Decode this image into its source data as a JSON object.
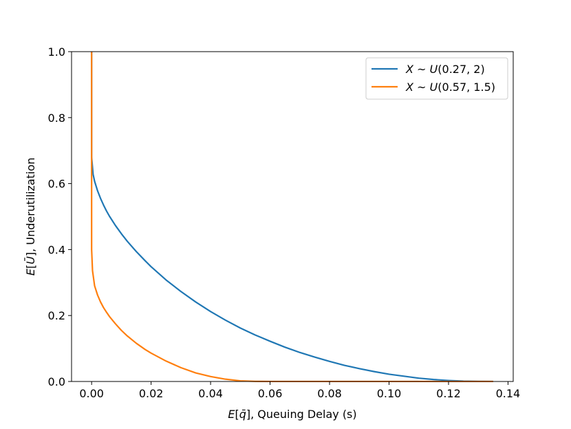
{
  "chart_data": {
    "type": "line",
    "title": "",
    "xlabel": {
      "prefix": "",
      "italic_var": "E",
      "open": "[",
      "var": "q̄",
      "close": "]",
      "suffix": ", Queuing Delay (s)"
    },
    "ylabel": {
      "prefix": "",
      "italic_var": "E",
      "open": "[",
      "var": "Ū",
      "close": "]",
      "suffix": ", Underutilization"
    },
    "xlim": [
      -0.00675,
      0.14175
    ],
    "ylim": [
      0,
      1.0
    ],
    "x_ticks": [
      0.0,
      0.02,
      0.04,
      0.06,
      0.08,
      0.1,
      0.12,
      0.14
    ],
    "x_tick_labels": [
      "0.00",
      "0.02",
      "0.04",
      "0.06",
      "0.08",
      "0.10",
      "0.12",
      "0.14"
    ],
    "y_ticks": [
      0.0,
      0.2,
      0.4,
      0.6,
      0.8,
      1.0
    ],
    "y_tick_labels": [
      "0.0",
      "0.2",
      "0.4",
      "0.6",
      "0.8",
      "1.0"
    ],
    "grid": false,
    "legend_position": "top-right",
    "series": [
      {
        "name": "X ~ U(0.27, 2)",
        "legend": {
          "X": "X",
          "sim": "~",
          "U": "U",
          "args": "(0.27, 2)"
        },
        "color": "#1f77b4",
        "points": [
          [
            0.0,
            1.0
          ],
          [
            0.0,
            0.68
          ],
          [
            0.0005,
            0.628
          ],
          [
            0.001,
            0.607
          ],
          [
            0.002,
            0.578
          ],
          [
            0.003,
            0.555
          ],
          [
            0.004,
            0.535
          ],
          [
            0.005,
            0.517
          ],
          [
            0.006,
            0.501
          ],
          [
            0.008,
            0.473
          ],
          [
            0.01,
            0.448
          ],
          [
            0.012,
            0.425
          ],
          [
            0.015,
            0.394
          ],
          [
            0.018,
            0.366
          ],
          [
            0.02,
            0.348
          ],
          [
            0.025,
            0.308
          ],
          [
            0.03,
            0.273
          ],
          [
            0.035,
            0.241
          ],
          [
            0.04,
            0.212
          ],
          [
            0.045,
            0.186
          ],
          [
            0.05,
            0.162
          ],
          [
            0.055,
            0.141
          ],
          [
            0.06,
            0.122
          ],
          [
            0.065,
            0.104
          ],
          [
            0.07,
            0.088
          ],
          [
            0.075,
            0.074
          ],
          [
            0.08,
            0.061
          ],
          [
            0.085,
            0.049
          ],
          [
            0.09,
            0.039
          ],
          [
            0.095,
            0.03
          ],
          [
            0.1,
            0.022
          ],
          [
            0.105,
            0.016
          ],
          [
            0.11,
            0.01
          ],
          [
            0.115,
            0.006
          ],
          [
            0.12,
            0.003
          ],
          [
            0.125,
            0.001
          ],
          [
            0.13,
            0.0002
          ],
          [
            0.135,
            0.0
          ]
        ]
      },
      {
        "name": "X ~ U(0.57, 1.5)",
        "legend": {
          "X": "X",
          "sim": "~",
          "U": "U",
          "args": "(0.57, 1.5)"
        },
        "color": "#ff7f0e",
        "points": [
          [
            0.0,
            1.0
          ],
          [
            0.0,
            0.4
          ],
          [
            0.0003,
            0.336
          ],
          [
            0.001,
            0.29
          ],
          [
            0.002,
            0.262
          ],
          [
            0.003,
            0.241
          ],
          [
            0.004,
            0.224
          ],
          [
            0.005,
            0.21
          ],
          [
            0.006,
            0.197
          ],
          [
            0.008,
            0.175
          ],
          [
            0.01,
            0.155
          ],
          [
            0.012,
            0.138
          ],
          [
            0.015,
            0.116
          ],
          [
            0.018,
            0.097
          ],
          [
            0.02,
            0.086
          ],
          [
            0.025,
            0.062
          ],
          [
            0.03,
            0.042
          ],
          [
            0.035,
            0.026
          ],
          [
            0.04,
            0.015
          ],
          [
            0.045,
            0.007
          ],
          [
            0.05,
            0.002
          ],
          [
            0.055,
            0.0004
          ],
          [
            0.06,
            0.0
          ],
          [
            0.135,
            0.0
          ]
        ]
      }
    ]
  }
}
